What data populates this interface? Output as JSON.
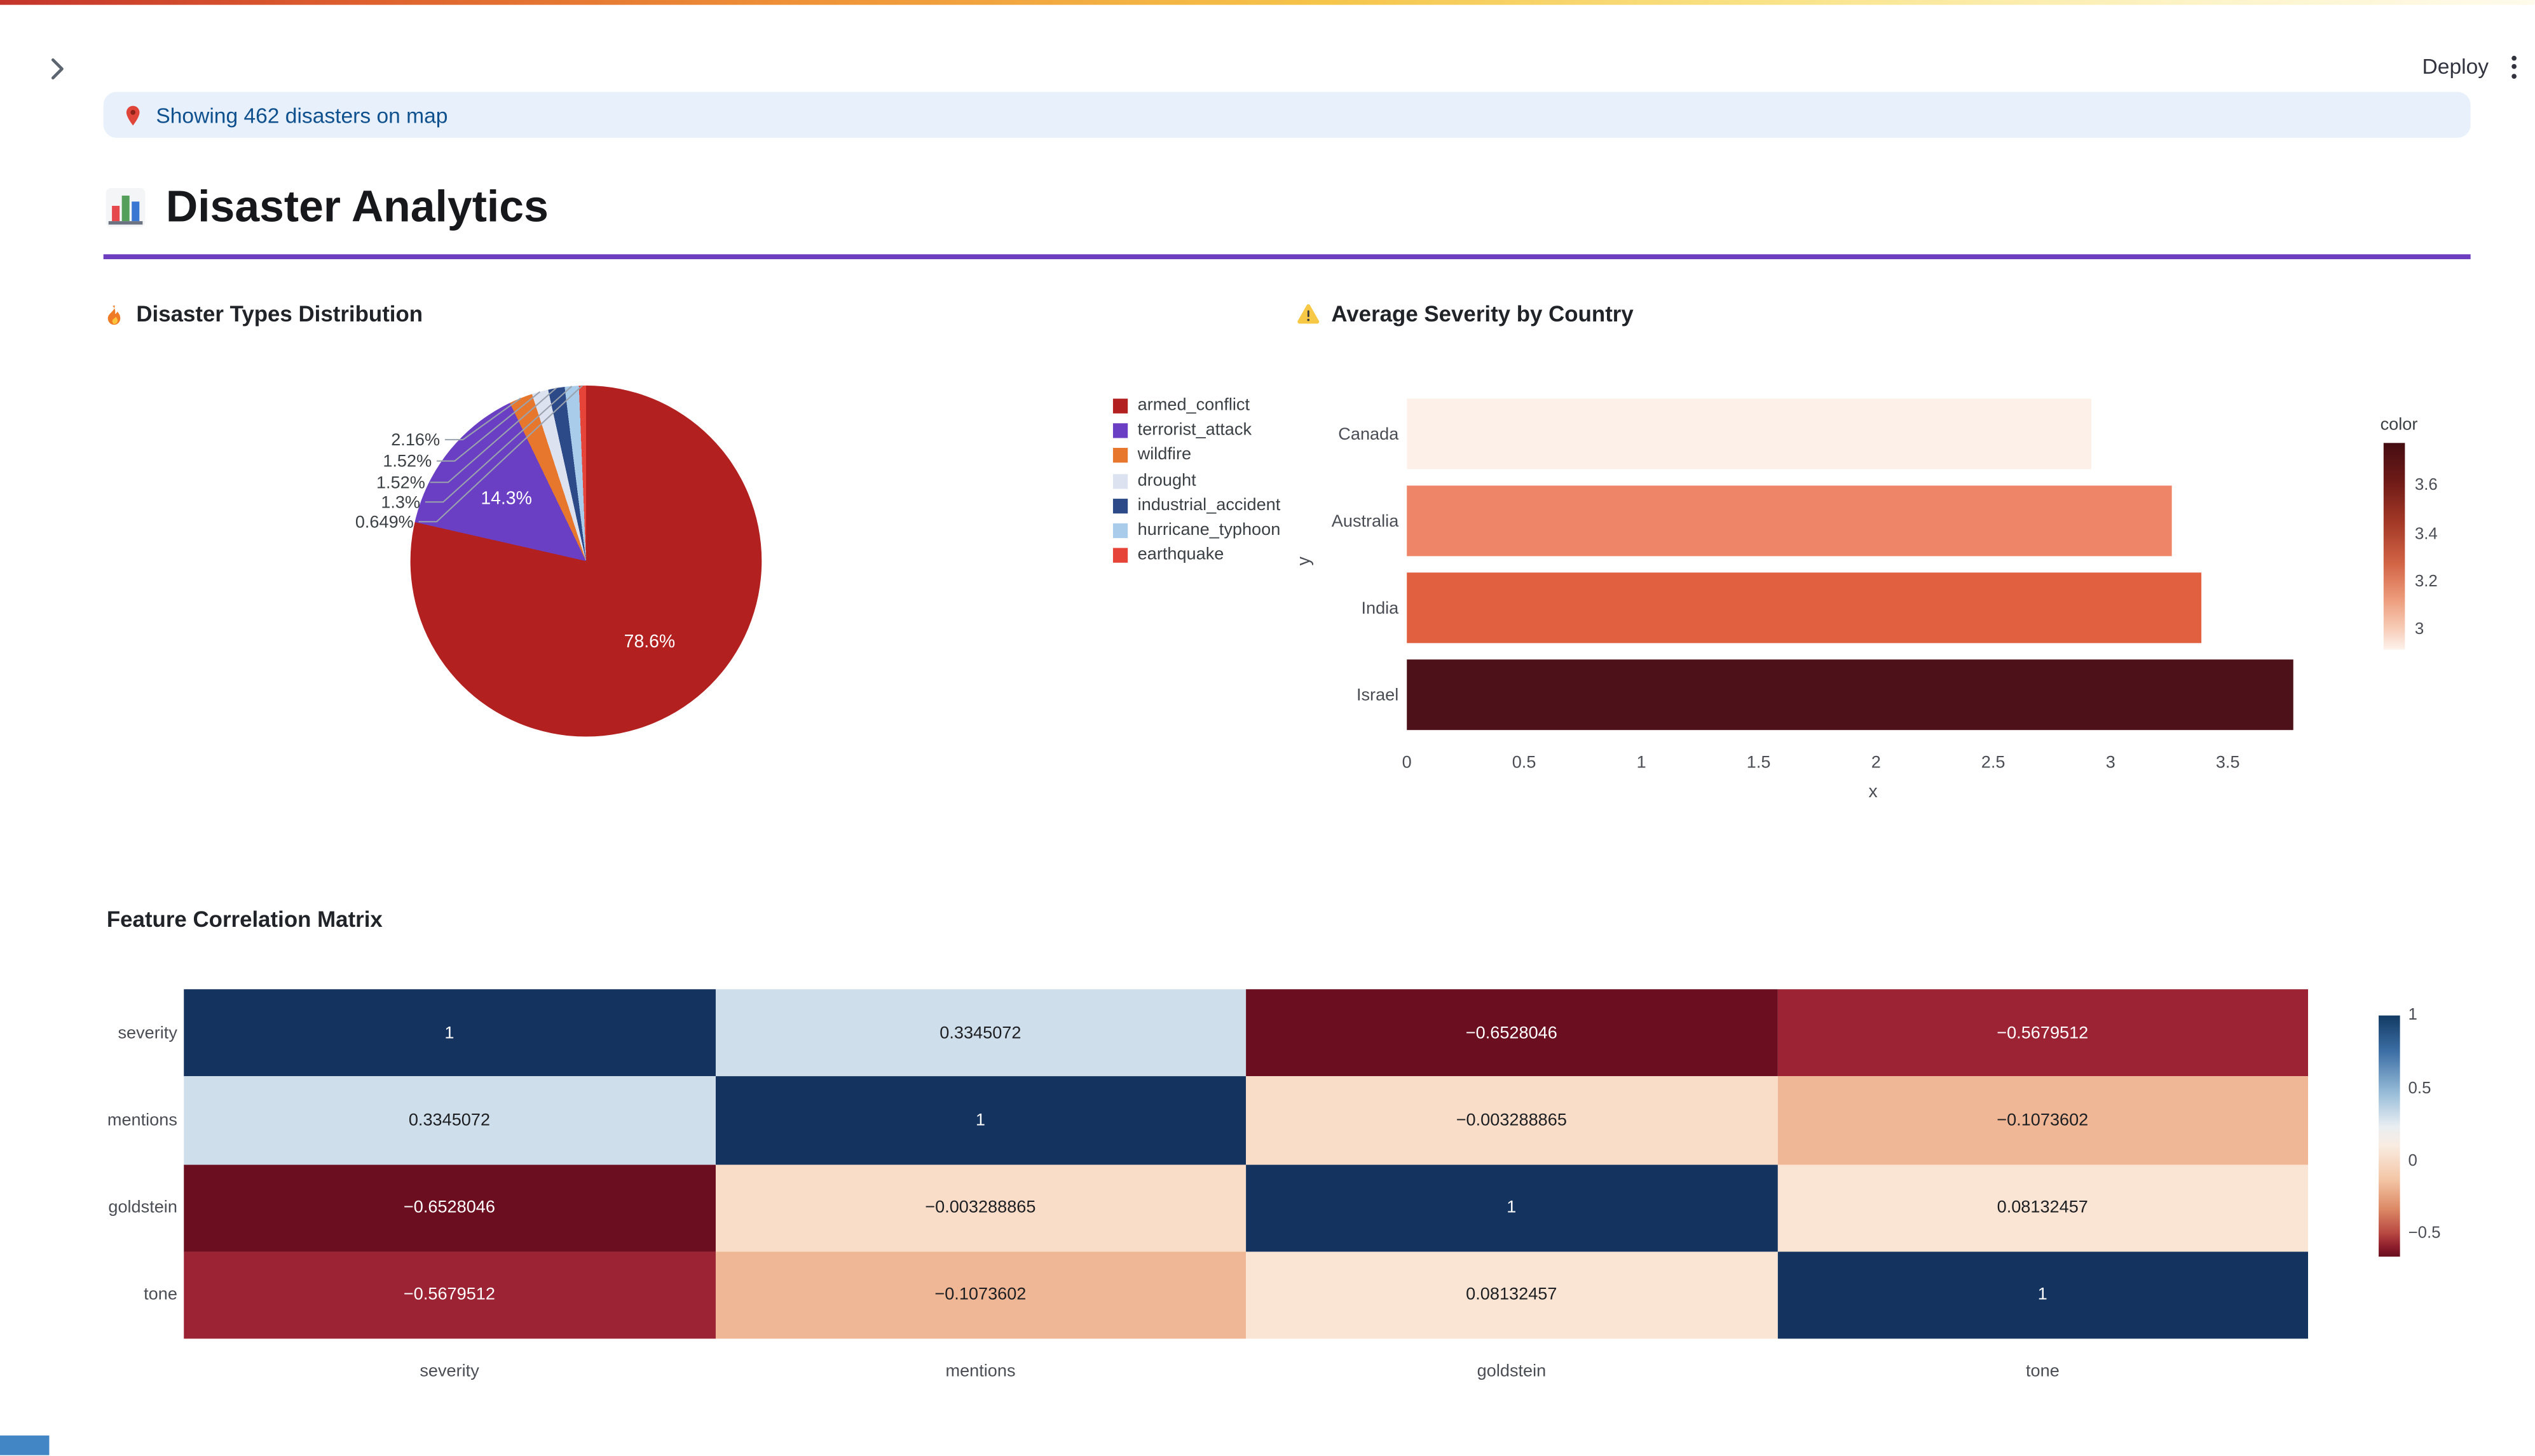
{
  "app": {
    "header": {
      "deploy_label": "Deploy",
      "sidebar_toggle_icon": "chevron-right-icon",
      "menu_icon": "kebab-menu-icon"
    },
    "banner": {
      "icon": "pin-icon",
      "text": "Showing 462 disasters on map"
    },
    "title": {
      "icon": "bar-chart-icon",
      "text": "Disaster Analytics"
    },
    "accent_colors": {
      "divider": "#6d3fc0",
      "info_background": "#e8f1fb",
      "info_text": "#0f508e"
    }
  },
  "sections": {
    "pie": {
      "icon": "flame-icon",
      "title": "Disaster Types Distribution"
    },
    "bars": {
      "icon": "warning-icon",
      "title": "Average Severity by Country"
    },
    "heatmap": {
      "title": "Feature Correlation Matrix"
    }
  },
  "chart_data": [
    {
      "type": "pie",
      "title": "Disaster Types Distribution",
      "labels": [
        "armed_conflict",
        "terrorist_attack",
        "wildfire",
        "drought",
        "industrial_accident",
        "hurricane_typhoon",
        "earthquake"
      ],
      "values_pct": [
        78.6,
        14.3,
        2.16,
        1.52,
        1.52,
        1.3,
        0.649
      ],
      "slice_text": [
        "78.6%",
        "14.3%",
        "2.16%",
        "1.52%",
        "1.52%",
        "1.3%",
        "0.649%"
      ],
      "colors": [
        "#b32020",
        "#6a3fc4",
        "#e8772e",
        "#dde2f0",
        "#2c4a88",
        "#a8cce9",
        "#e64438"
      ],
      "legend_position": "right"
    },
    {
      "type": "bar",
      "orientation": "horizontal",
      "title": "Average Severity by Country",
      "categories": [
        "Canada",
        "Australia",
        "India",
        "Israel"
      ],
      "values": [
        2.92,
        3.26,
        3.39,
        3.78
      ],
      "bar_colors": [
        "#fdf0e9",
        "#ee8568",
        "#e0603f",
        "#4d1219"
      ],
      "xlabel": "x",
      "ylabel": "y",
      "xlim": [
        0,
        3.8
      ],
      "xtick_labels": [
        "0",
        "0.5",
        "1",
        "1.5",
        "2",
        "2.5",
        "3",
        "3.5"
      ],
      "xtick_values": [
        0,
        0.5,
        1,
        1.5,
        2,
        2.5,
        3,
        3.5
      ],
      "grid": false,
      "colorbar": {
        "title": "color",
        "tick_labels": [
          "3.6",
          "3.4",
          "3.2",
          "3"
        ],
        "tick_values": [
          3.6,
          3.4,
          3.2,
          3
        ],
        "vmin": 2.92,
        "vmax": 3.78
      }
    },
    {
      "type": "heatmap",
      "title": "Feature Correlation Matrix",
      "x_labels": [
        "severity",
        "mentions",
        "goldstein",
        "tone"
      ],
      "y_labels": [
        "severity",
        "mentions",
        "goldstein",
        "tone"
      ],
      "values": [
        [
          1,
          0.3345072,
          -0.6528046,
          -0.5679512
        ],
        [
          0.3345072,
          1,
          -0.003288865,
          -0.1073602
        ],
        [
          -0.6528046,
          -0.003288865,
          1,
          0.08132457
        ],
        [
          -0.5679512,
          -0.1073602,
          0.08132457,
          1
        ]
      ],
      "cell_text": [
        [
          "1",
          "0.3345072",
          "−0.6528046",
          "−0.5679512"
        ],
        [
          "0.3345072",
          "1",
          "−0.003288865",
          "−0.1073602"
        ],
        [
          "−0.6528046",
          "−0.003288865",
          "1",
          "0.08132457"
        ],
        [
          "−0.5679512",
          "−0.1073602",
          "0.08132457",
          "1"
        ]
      ],
      "cell_colors": [
        [
          "#14335f",
          "#cfdeeb",
          "#6b0f20",
          "#9c2334"
        ],
        [
          "#cfdeeb",
          "#14335f",
          "#f9ddc9",
          "#efb795"
        ],
        [
          "#6b0f20",
          "#f9ddc9",
          "#14335f",
          "#fae5d4"
        ],
        [
          "#9c2334",
          "#efb795",
          "#fae5d4",
          "#14335f"
        ]
      ],
      "cell_text_colors": [
        [
          "#ffffff",
          "#1c1e21",
          "#ffffff",
          "#ffffff"
        ],
        [
          "#1c1e21",
          "#ffffff",
          "#1c1e21",
          "#1c1e21"
        ],
        [
          "#ffffff",
          "#1c1e21",
          "#ffffff",
          "#1c1e21"
        ],
        [
          "#ffffff",
          "#1c1e21",
          "#1c1e21",
          "#ffffff"
        ]
      ],
      "colorbar": {
        "tick_labels": [
          "1",
          "0.5",
          "0",
          "−0.5"
        ],
        "tick_values": [
          1,
          0.5,
          0,
          -0.5
        ],
        "vmin": -0.6528046,
        "vmax": 1
      }
    }
  ],
  "misc": {
    "map_fragment_color": "#4286c5"
  }
}
